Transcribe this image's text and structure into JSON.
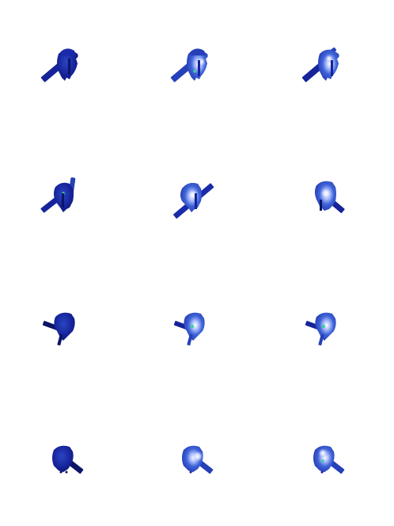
{
  "sprite_sheet": {
    "background": "#ffffff",
    "palette": {
      "dark_navy": "#0c1466",
      "deep_blue": "#16239a",
      "mid_blue": "#2540b8",
      "bright_blue": "#3f63d8",
      "highlight": "#e8eeff",
      "gem_green": "#36d39a"
    },
    "frames": [
      {
        "row": 0,
        "col": 0,
        "pose": "weapon-down-left",
        "glow": false,
        "gem": false
      },
      {
        "row": 0,
        "col": 1,
        "pose": "weapon-down-left",
        "glow": true,
        "gem": true
      },
      {
        "row": 0,
        "col": 2,
        "pose": "weapon-down-left",
        "glow": true,
        "gem": false
      },
      {
        "row": 1,
        "col": 0,
        "pose": "weapon-raised",
        "glow": false,
        "gem": true
      },
      {
        "row": 1,
        "col": 1,
        "pose": "weapon-diagonal",
        "glow": true,
        "gem": false
      },
      {
        "row": 1,
        "col": 2,
        "pose": "weapon-down-right",
        "glow": true,
        "gem": false
      },
      {
        "row": 2,
        "col": 0,
        "pose": "weapon-back",
        "glow": false,
        "gem": false
      },
      {
        "row": 2,
        "col": 1,
        "pose": "weapon-back",
        "glow": false,
        "gem": true
      },
      {
        "row": 2,
        "col": 2,
        "pose": "weapon-back",
        "glow": false,
        "gem": true
      },
      {
        "row": 3,
        "col": 0,
        "pose": "weapon-low-right",
        "glow": false,
        "gem": false
      },
      {
        "row": 3,
        "col": 1,
        "pose": "weapon-low-right",
        "glow": true,
        "gem": false
      },
      {
        "row": 3,
        "col": 2,
        "pose": "weapon-low-right",
        "glow": true,
        "gem": true
      }
    ]
  }
}
